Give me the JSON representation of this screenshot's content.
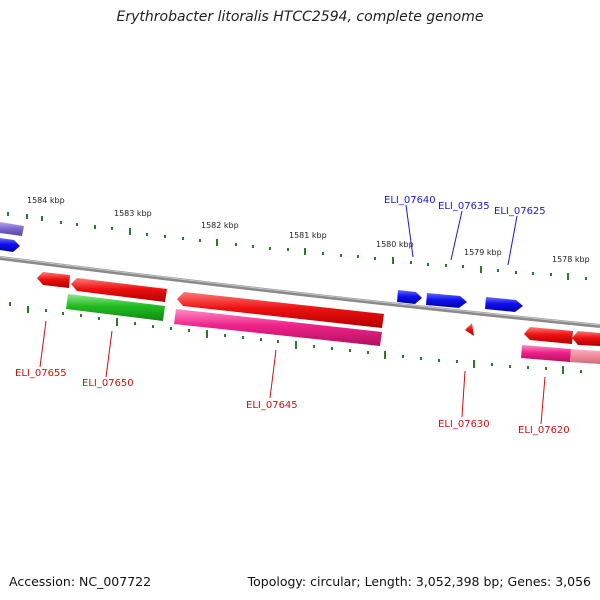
{
  "title": "Erythrobacter litoralis HTCC2594, complete genome",
  "accession": "Accession: NC_007722",
  "topology": "Topology: circular; Length: 3,052,398 bp; Genes: 3,056",
  "kbp_ticks": [
    "1584 kbp",
    "1583 kbp",
    "1582 kbp",
    "1581 kbp",
    "1580 kbp",
    "1579 kbp",
    "1578 kbp"
  ],
  "forward_gene_labels": [
    "ELI_07640",
    "ELI_07635",
    "ELI_07625"
  ],
  "reverse_gene_labels": [
    "ELI_07655",
    "ELI_07650",
    "ELI_07645",
    "ELI_07630",
    "ELI_07620"
  ],
  "colors": {
    "forward_gene": "#1010ee",
    "reverse_gene": "#ee1111",
    "rna_gene": "#ee2288",
    "green_gene": "#22bb22",
    "purple_gene": "#7766cc",
    "backbone": "#888888",
    "tick": "#2a7a2a"
  }
}
